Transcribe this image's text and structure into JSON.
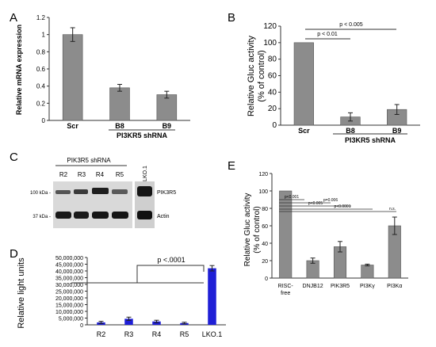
{
  "colors": {
    "gray_bar": "#8c8c8c",
    "blue_bar": "#1f1fd6",
    "axis": "#333333",
    "blot_bg": "#d4d4d4",
    "band": "#1c1c1c"
  },
  "chart_data": [
    {
      "panel": "A",
      "type": "bar",
      "ylabel": "Relative mRNA expression",
      "ylim": [
        0,
        1.2
      ],
      "ticks": [
        "0",
        "0.2",
        "0.4",
        "0.6",
        "0.8",
        "1",
        "1.2"
      ],
      "categories": [
        "Scr",
        "B8",
        "B9"
      ],
      "values": [
        1.0,
        0.38,
        0.3
      ],
      "errors": [
        0.08,
        0.04,
        0.04
      ],
      "group_label": "PI3KR5 shRNA",
      "grid": false
    },
    {
      "panel": "B",
      "type": "bar",
      "ylabel_line1": "Relative Gluc activity",
      "ylabel_line2": "(% of control)",
      "ylim": [
        0,
        120
      ],
      "ticks": [
        "0",
        "20",
        "40",
        "60",
        "80",
        "100",
        "120"
      ],
      "categories": [
        "Scr",
        "B8",
        "B9"
      ],
      "values": [
        100,
        10,
        19
      ],
      "errors": [
        0,
        5,
        6
      ],
      "group_label": "PI3KR5 shRNA",
      "annotations": [
        "p < 0.01",
        "p < 0.005"
      ],
      "grid": false
    },
    {
      "panel": "D",
      "type": "bar",
      "ylabel": "Relative light units",
      "ylim": [
        0,
        50000000
      ],
      "ticks": [
        "0",
        "5,000,000",
        "10,000,000",
        "15,000,000",
        "20,000,000",
        "25,000,000",
        "30,000,000",
        "35,000,000",
        "40,000,000",
        "45,000,000",
        "50,000,000"
      ],
      "categories": [
        "R2",
        "R3",
        "R4",
        "R5",
        "LKO.1"
      ],
      "values": [
        1800000,
        4500000,
        2500000,
        1300000,
        42000000
      ],
      "errors": [
        800000,
        1200000,
        900000,
        600000,
        2000000
      ],
      "annotations": [
        "p <.0001"
      ],
      "grid": false
    },
    {
      "panel": "E",
      "type": "bar",
      "ylabel_line1": "Relative Gluc activity",
      "ylabel_line2": "(% of control)",
      "ylim": [
        0,
        120
      ],
      "ticks": [
        "0",
        "20",
        "40",
        "60",
        "80",
        "100",
        "120"
      ],
      "categories": [
        "RISC-\nfree",
        "DNJB12",
        "PIK3R5",
        "PI3Kγ",
        "PI3Kα"
      ],
      "values": [
        100,
        20,
        36,
        15,
        60
      ],
      "errors": [
        0,
        3,
        6,
        1,
        10
      ],
      "annotations": [
        "p<0.001",
        "p=0.006",
        "p<0.005",
        "p<0.0001",
        "n.s."
      ],
      "grid": false
    }
  ],
  "blot": {
    "panel": "C",
    "header": "PIK3R5 shRNA",
    "lanes": [
      "R2",
      "R3",
      "R4",
      "R5"
    ],
    "control_lane": "LKO.1",
    "size_top": "100 kDa -",
    "size_bottom": "37 kDa -",
    "band_top": "PIK3R5",
    "band_bottom": "Actin"
  },
  "panel_labels": [
    "A",
    "B",
    "C",
    "D",
    "E"
  ]
}
